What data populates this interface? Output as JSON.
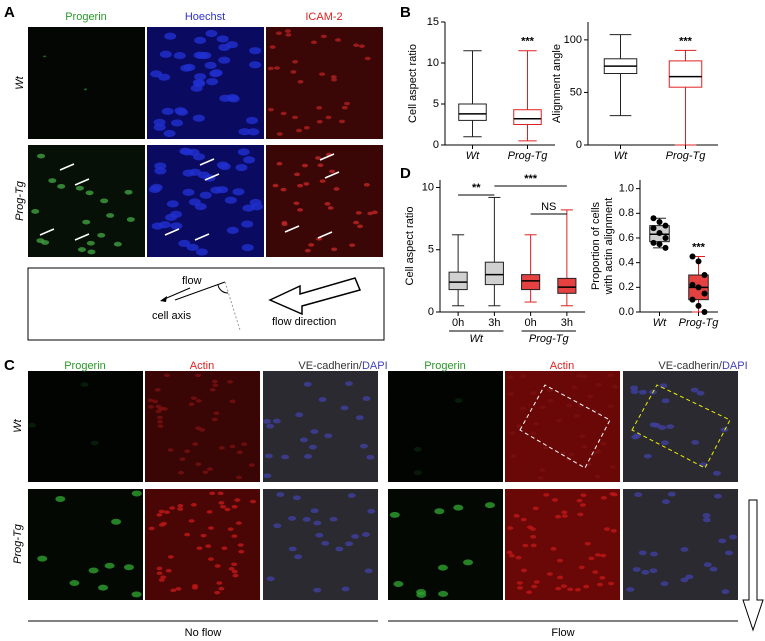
{
  "panels": {
    "A": {
      "label": "A",
      "columns": [
        "Progerin",
        "Hoechst",
        "ICAM-2"
      ],
      "rows": [
        "Wt",
        "Prog-Tg"
      ],
      "diagram": {
        "flow": "flow",
        "cell_axis": "cell axis",
        "direction": "flow direction"
      }
    },
    "B": {
      "label": "B"
    },
    "C": {
      "label": "C",
      "columns": [
        "Progerin",
        "Actin"
      ],
      "merged_column": [
        "VE-cadherin/",
        "DAPI"
      ],
      "rows": [
        "Wt",
        "Prog-Tg"
      ],
      "conditions": [
        "No flow",
        "Flow"
      ]
    },
    "D": {
      "label": "D"
    }
  },
  "chart_data": [
    {
      "type": "box",
      "y_label": [
        "Cell aspect ratio"
      ],
      "categories": [
        "Wt",
        "Prog-Tg"
      ],
      "colors": [
        "#222222",
        "#e02020"
      ],
      "boxes": [
        {
          "min": 1,
          "q1": 3,
          "median": 3.8,
          "q3": 5,
          "max": 11.5
        },
        {
          "min": 0.5,
          "q1": 2.5,
          "median": 3.2,
          "q3": 4.3,
          "max": 11.5
        }
      ],
      "ylim": [
        0,
        15
      ],
      "yticks": [
        0,
        5,
        10,
        15
      ],
      "annotations": [
        "***"
      ]
    },
    {
      "type": "box",
      "y_label": [
        "Alignment angle"
      ],
      "categories": [
        "Wt",
        "Prog-Tg"
      ],
      "colors": [
        "#222222",
        "#e02020"
      ],
      "boxes": [
        {
          "min": 28,
          "q1": 68,
          "median": 75,
          "q3": 82,
          "max": 105
        },
        {
          "min": 0,
          "q1": 55,
          "median": 65,
          "q3": 80,
          "max": 90
        }
      ],
      "ylim": [
        0,
        117
      ],
      "yticks": [
        0,
        50,
        100
      ],
      "annotations": [
        "***"
      ]
    },
    {
      "type": "box",
      "y_label": [
        "Cell aspect ratio"
      ],
      "categories": [
        "0h",
        "3h",
        "0h",
        "3h"
      ],
      "groups": [
        "Wt",
        "Prog-Tg"
      ],
      "colors": [
        "#c8c8c8",
        "#c8c8c8",
        "#e02020",
        "#e02020"
      ],
      "boxes": [
        {
          "min": 0.5,
          "q1": 1.8,
          "median": 2.4,
          "q3": 3.2,
          "max": 6.2
        },
        {
          "min": 0.5,
          "q1": 2.2,
          "median": 3,
          "q3": 4,
          "max": 9.2
        },
        {
          "min": 0.8,
          "q1": 1.8,
          "median": 2.5,
          "q3": 3,
          "max": 6.2
        },
        {
          "min": 0.5,
          "q1": 1.5,
          "median": 2,
          "q3": 2.7,
          "max": 8.2
        }
      ],
      "ylim": [
        0,
        10.6
      ],
      "yticks": [
        0,
        5,
        10
      ],
      "annotations": [
        "**",
        "***",
        "NS"
      ]
    },
    {
      "type": "box",
      "y_label": [
        "Proportion of cells",
        "with actin alignment"
      ],
      "categories": [
        "Wt",
        "Prog-Tg"
      ],
      "colors": [
        "#c8c8c8",
        "#e02020"
      ],
      "boxes": [
        {
          "min": 0.52,
          "q1": 0.57,
          "median": 0.63,
          "q3": 0.7,
          "max": 0.76
        },
        {
          "min": 0,
          "q1": 0.1,
          "median": 0.2,
          "q3": 0.3,
          "max": 0.45
        }
      ],
      "points": [
        [
          0.76,
          0.73,
          0.7,
          0.68,
          0.64,
          0.6,
          0.56,
          0.55,
          0.52
        ],
        [
          0.45,
          0.41,
          0.3,
          0.22,
          0.2,
          0.15,
          0.1,
          0.05,
          0
        ]
      ],
      "ylim": [
        0,
        1.07
      ],
      "yticks": [
        {
          "value": 0,
          "label": "0.0"
        },
        0.2,
        0.4,
        0.6,
        0.8,
        {
          "value": 1,
          "label": "1.0"
        }
      ],
      "annotations": [
        "***"
      ]
    }
  ]
}
